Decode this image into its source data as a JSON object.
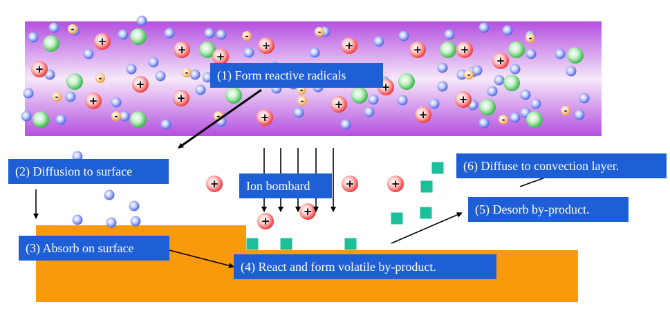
{
  "colors": {
    "plasma_light": "#f6e8fb",
    "plasma_dark": "#b44fe0",
    "substrate": "#f99a0c",
    "label_box": "#1f5fd6",
    "label_text": "#ffffff",
    "positive_ion": "#ef3b3b",
    "radical": "#38b84a",
    "neutral_particle": "#4b65e6",
    "electron": "#f59a3c",
    "by_product": "#1cbf99",
    "arrow": "#000000"
  },
  "labels": {
    "step1": "(1) Form reactive radicals",
    "step2": "(2) Diffusion to surface",
    "step3": "(3) Absorb on surface",
    "step4": "(4) React and form volatile by-product.",
    "step5": "(5) Desorb by-product.",
    "step6": "(6) Diffuse to convection layer.",
    "ion_bombard": "Ion bombard"
  },
  "symbols": {
    "positive": "+",
    "negative": "-"
  }
}
